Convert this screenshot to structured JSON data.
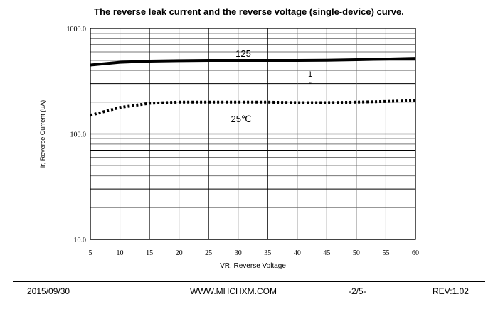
{
  "chart_data": {
    "type": "line",
    "title": "The reverse leak current and the reverse voltage (single-device) curve.",
    "xlabel": "VR, Reverse Voltage",
    "ylabel": "Ir, Reverse Current (uA)",
    "xlim": [
      5,
      60
    ],
    "ylim": [
      10,
      1000
    ],
    "yscale": "log",
    "grid": true,
    "xticks": [
      "5",
      "10",
      "15",
      "20",
      "25",
      "30",
      "35",
      "40",
      "45",
      "50",
      "55",
      "60"
    ],
    "yticks": [
      "10.0",
      "100.0",
      "1000.0"
    ],
    "x": [
      5,
      10,
      15,
      20,
      25,
      30,
      35,
      40,
      45,
      50,
      55,
      60
    ],
    "series": [
      {
        "name": "125",
        "style": "solid",
        "values": [
          450,
          478,
          490,
          495,
          498,
          498,
          498,
          498,
          500,
          505,
          512,
          520
        ]
      },
      {
        "name": "25℃",
        "style": "dotted",
        "values": [
          150,
          178,
          195,
          200,
          200,
          200,
          200,
          198,
          198,
          200,
          203,
          207
        ]
      }
    ],
    "annotations": [
      "1",
      "°"
    ]
  },
  "footer": {
    "date": "2015/09/30",
    "website": "WWW.MHCHXM.COM",
    "page": "-2/5-",
    "rev": "REV:1.02"
  }
}
